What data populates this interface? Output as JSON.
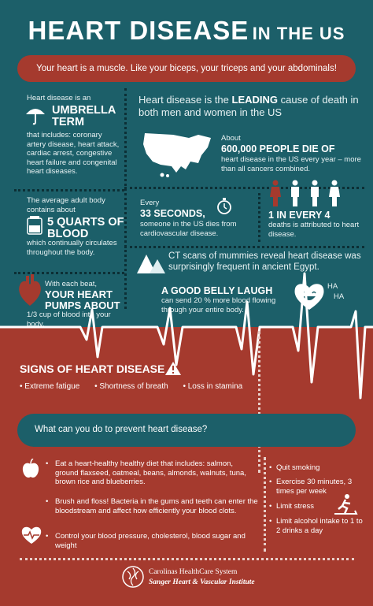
{
  "header": {
    "title_main": "HEART DISEASE",
    "title_sub": "IN THE US"
  },
  "banner": "Your heart is a muscle. Like your biceps, your triceps and your abdominals!",
  "umbrella": {
    "intro": "Heart disease is an",
    "term": "UMBRELLA TERM",
    "text": "that includes: coronary artery disease, heart attack, cardiac arrest, congestive heart failure and congenital heart diseases."
  },
  "blood": {
    "intro": "The average adult body contains about",
    "amount": "5 QUARTS OF BLOOD",
    "text": "which continually circulates throughout the body."
  },
  "pump": {
    "intro": "With each beat,",
    "big": "YOUR HEART PUMPS ABOUT",
    "text": "1/3 cup of blood into your body."
  },
  "leading": {
    "pre": "Heart disease is the ",
    "bold": "LEADING",
    "post": " cause of death in both men and women in the US"
  },
  "deaths": {
    "about": "About",
    "big": "600,000 PEOPLE DIE OF",
    "text": "heart disease in the US every year – more than all cancers combined."
  },
  "seconds": {
    "every": "Every",
    "big": "33 SECONDS,",
    "text": "someone in the US dies from cardiovascular disease."
  },
  "ratio": {
    "big": "1 IN EVERY 4",
    "text": "deaths is attributed to heart disease."
  },
  "mummies": "CT scans of mummies reveal heart disease was surprisingly frequent in ancient Egypt.",
  "laugh": {
    "big": "A GOOD BELLY LAUGH",
    "text": "can send 20 % more blood flowing through your entire body.",
    "ha1": "HA",
    "ha2": "HA"
  },
  "signs": {
    "title": "SIGNS OF HEART DISEASE",
    "items": [
      "Extreme fatigue",
      "Shortness of breath",
      "Loss in stamina"
    ]
  },
  "prevent": {
    "question": "What can you do to prevent heart disease?"
  },
  "tips_left": [
    "Eat a heart-healthy healthy diet that includes: salmon, ground flaxseed, oatmeal, beans, almonds, walnuts, tuna, brown rice and blueberries.",
    "Brush and floss! Bacteria in the gums and teeth can enter the bloodstream and affect how efficiently your blood clots.",
    "Control your blood pressure, cholesterol, blood sugar and weight"
  ],
  "tips_right": [
    "Quit smoking",
    "Exercise 30 minutes, 3 times per week",
    "Limit stress",
    "Limit alcohol intake to 1 to 2 drinks a day"
  ],
  "footer": {
    "org": "Carolinas HealthCare System",
    "institute": "Sanger Heart & Vascular Institute"
  },
  "colors": {
    "teal": "#1c5f69",
    "red": "#a53a2e",
    "dark": "#0c2f35"
  }
}
